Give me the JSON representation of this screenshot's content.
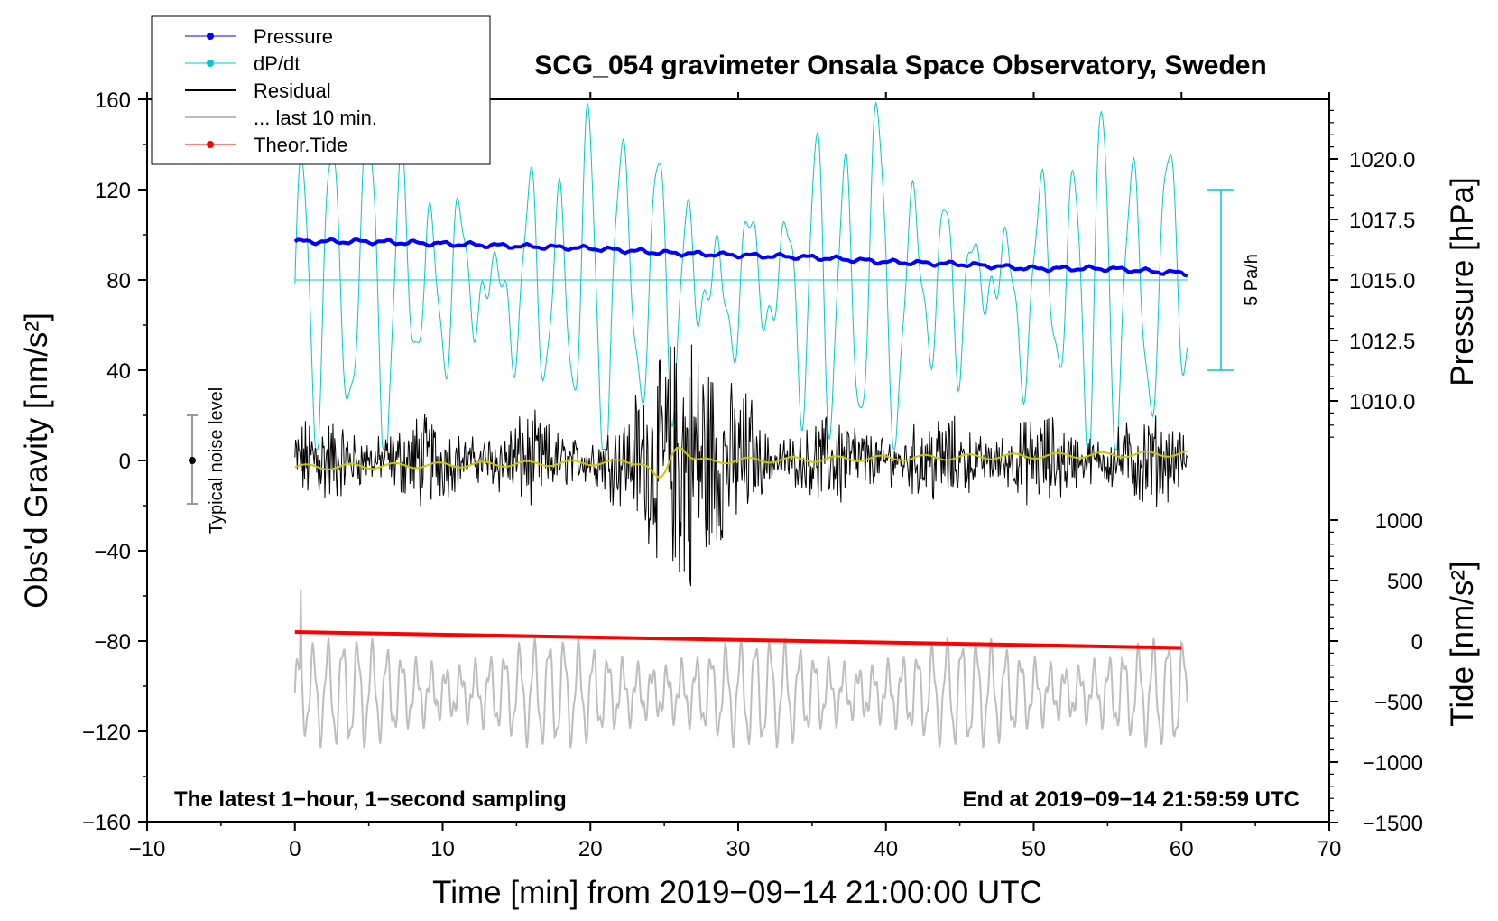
{
  "chart_data": {
    "type": "line",
    "title": "SCG_054 gravimeter Onsala Space Observatory, Sweden",
    "xlabel": "Time [min] from 2019−09−14 21:00:00 UTC",
    "xlim": [
      -10,
      70
    ],
    "x_ticks": [
      "−10",
      "0",
      "10",
      "20",
      "30",
      "40",
      "50",
      "60",
      "70"
    ],
    "left_axis": {
      "label": "Obs'd Gravity [nm/s²]",
      "ylim": [
        -160,
        160
      ],
      "ticks": [
        "160",
        "120",
        "80",
        "40",
        "0",
        "−40",
        "−80",
        "−120",
        "−160"
      ]
    },
    "pressure_axis": {
      "label": "Pressure [hPa]",
      "ticks": [
        "1020.0",
        "1017.5",
        "1015.0",
        "1012.5",
        "1010.0"
      ]
    },
    "tide_axis": {
      "label": "Tide [nm/s²]",
      "ticks": [
        "1000",
        "500",
        "0",
        "−500",
        "−1000",
        "−1500"
      ]
    },
    "legend": [
      {
        "label": "Pressure",
        "color": "#0000ff",
        "marker": true
      },
      {
        "label": "dP/dt",
        "color": "#00c8c8",
        "marker": true
      },
      {
        "label": "Residual",
        "color": "#000000",
        "marker": false
      },
      {
        "label": "... last 10 min.",
        "color": "#bdbdbd",
        "marker": false
      },
      {
        "label": "Theor.Tide",
        "color": "#ff0000",
        "marker": true
      }
    ],
    "series": [
      {
        "name": "Pressure",
        "unit": "hPa",
        "x": [
          0,
          5,
          10,
          15,
          20,
          25,
          30,
          35,
          40,
          45,
          50,
          55,
          60
        ],
        "values": [
          1016.5,
          1016.4,
          1016.3,
          1016.2,
          1016.1,
          1016.0,
          1015.9,
          1015.8,
          1015.7,
          1015.6,
          1015.5,
          1015.4,
          1015.3
        ]
      },
      {
        "name": "Pressure offset (gravity units)",
        "unit": "nm/s²",
        "x": [
          0,
          5,
          10,
          15,
          20,
          25,
          30,
          35,
          40,
          45,
          50,
          55,
          60
        ],
        "values": [
          97,
          97,
          96,
          95,
          94,
          92,
          91,
          90,
          88,
          87,
          85,
          85,
          83
        ]
      },
      {
        "name": "dP/dt",
        "baseline": 80
      },
      {
        "name": "Residual",
        "envelope_nm_s2": 25
      },
      {
        "name": "Residual (smoothed)",
        "x": [
          0,
          10,
          20,
          30,
          40,
          50,
          60
        ],
        "values": [
          -3,
          -2,
          -1,
          0,
          1,
          2,
          3
        ]
      },
      {
        "name": "Theor.Tide",
        "unit": "nm/s²",
        "x": [
          0,
          60
        ],
        "values": [
          -76,
          -83
        ]
      },
      {
        "name": "... last 10 min.",
        "center": -103
      }
    ],
    "annotations": {
      "noise_label": "Typical noise level",
      "rate_label": "5 Pa/h",
      "footer_left": "The latest 1−hour, 1−second sampling",
      "footer_right": "End at 2019−09−14 21:59:59 UTC"
    }
  }
}
